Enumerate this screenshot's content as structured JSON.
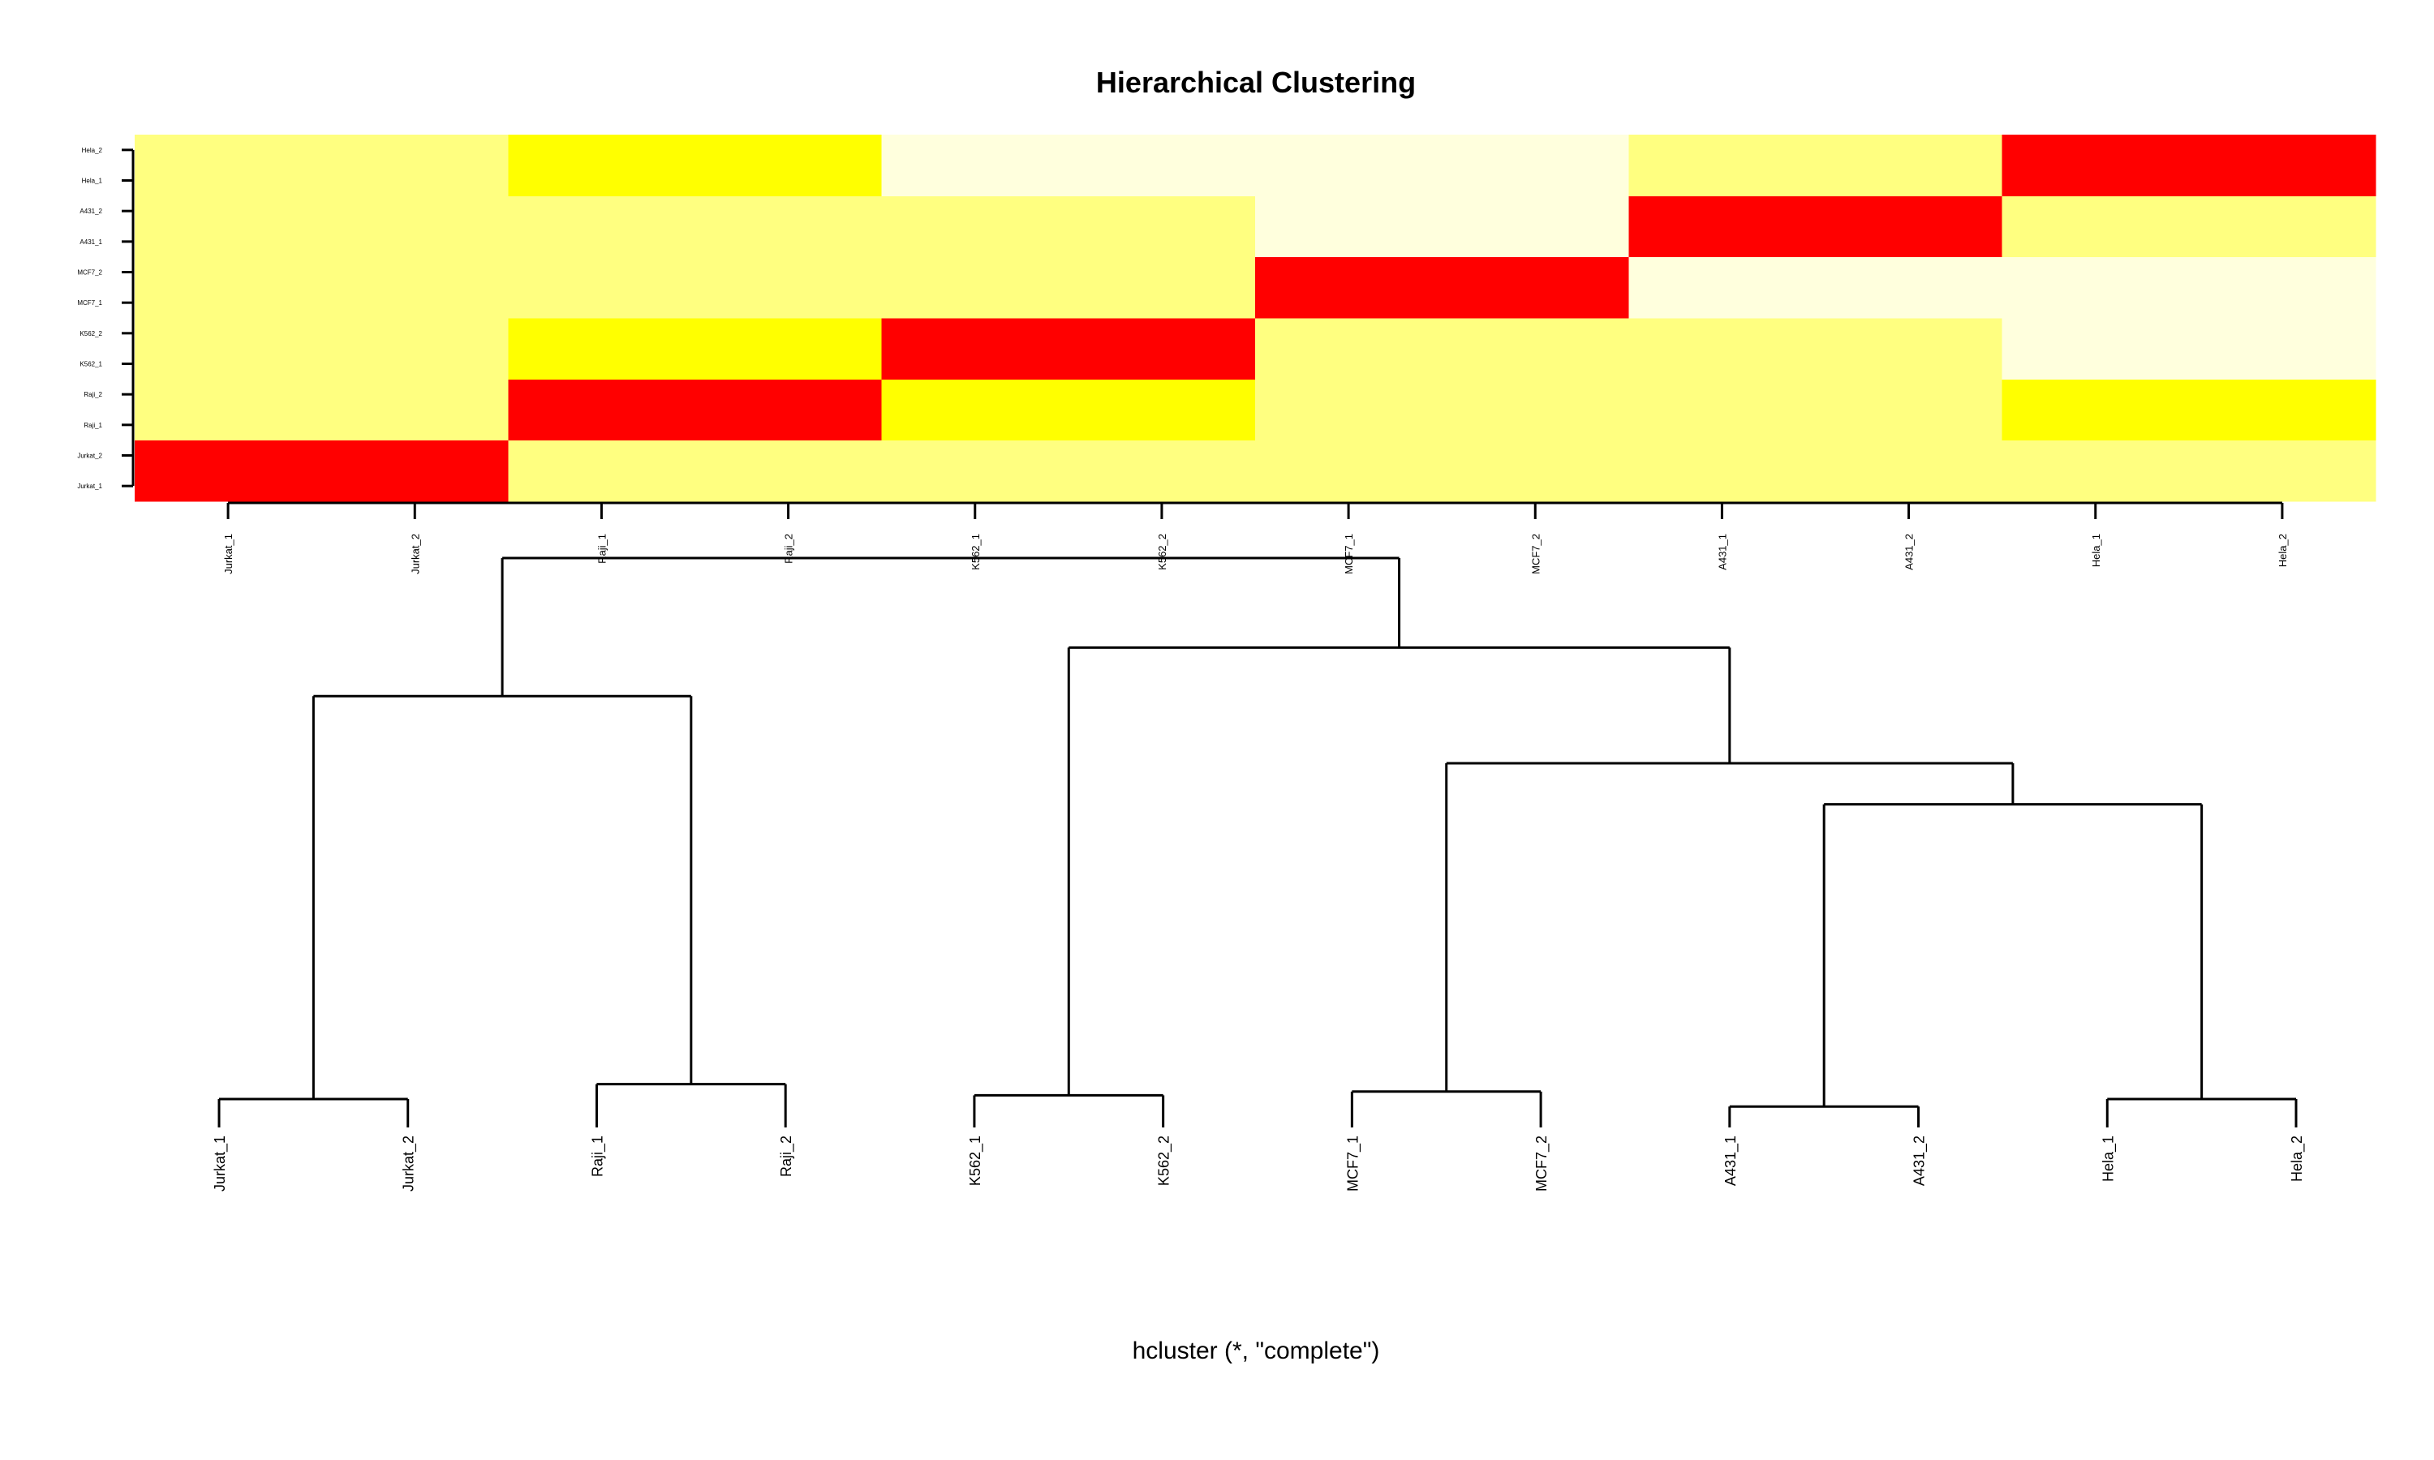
{
  "chart_data": [
    {
      "type": "heatmap",
      "title": "Hierarchical Clustering",
      "xlabel": "",
      "ylabel": "",
      "x": [
        "Jurkat_1",
        "Jurkat_2",
        "Raji_1",
        "Raji_2",
        "K562_1",
        "K562_2",
        "MCF7_1",
        "MCF7_2",
        "A431_1",
        "A431_2",
        "Hela_1",
        "Hela_2"
      ],
      "y": [
        "Jurkat_1",
        "Jurkat_2",
        "Raji_1",
        "Raji_2",
        "K562_1",
        "K562_2",
        "MCF7_1",
        "MCF7_2",
        "A431_1",
        "A431_2",
        "Hela_1",
        "Hela_2"
      ],
      "y_display": [
        "Jurkat_1",
        "Jurkat_2",
        "Raji_1",
        "Raji_2",
        "K562_1",
        "K562_2",
        "MCF7_1",
        "MCF7_2",
        "A431_1",
        "A431_2",
        "Hela_1",
        "Hela_2"
      ],
      "values": [
        [
          1.0,
          1.0,
          0.14,
          0.14,
          0.25,
          0.25,
          0.15,
          0.15,
          0.15,
          0.15,
          0.15,
          0.15
        ],
        [
          1.0,
          1.0,
          0.14,
          0.14,
          0.25,
          0.25,
          0.15,
          0.15,
          0.15,
          0.15,
          0.15,
          0.15
        ],
        [
          0.16,
          0.16,
          1.0,
          0.94,
          0.49,
          0.49,
          0.23,
          0.23,
          0.23,
          0.23,
          0.42,
          0.42
        ],
        [
          0.16,
          0.16,
          0.94,
          1.0,
          0.49,
          0.49,
          0.23,
          0.23,
          0.23,
          0.23,
          0.42,
          0.42
        ],
        [
          0.22,
          0.22,
          0.49,
          0.49,
          1.0,
          0.94,
          0.23,
          0.23,
          0.14,
          0.14,
          0.12,
          0.12
        ],
        [
          0.22,
          0.22,
          0.49,
          0.49,
          0.94,
          1.0,
          0.23,
          0.23,
          0.14,
          0.14,
          0.12,
          0.12
        ],
        [
          0.19,
          0.19,
          0.23,
          0.23,
          0.23,
          0.23,
          1.0,
          0.94,
          0.12,
          0.12,
          0.12,
          0.12
        ],
        [
          0.19,
          0.19,
          0.23,
          0.23,
          0.23,
          0.23,
          0.94,
          1.0,
          0.12,
          0.12,
          0.12,
          0.12
        ],
        [
          0.18,
          0.18,
          0.23,
          0.23,
          0.14,
          0.14,
          0.12,
          0.12,
          1.0,
          1.0,
          0.25,
          0.25
        ],
        [
          0.18,
          0.18,
          0.23,
          0.23,
          0.14,
          0.14,
          0.12,
          0.12,
          1.0,
          1.0,
          0.25,
          0.25
        ],
        [
          0.14,
          0.14,
          0.41,
          0.41,
          0.12,
          0.12,
          0.12,
          0.12,
          0.25,
          0.25,
          1.0,
          1.0
        ],
        [
          0.14,
          0.14,
          0.41,
          0.41,
          0.12,
          0.12,
          0.12,
          0.12,
          0.25,
          0.25,
          1.0,
          1.0
        ]
      ],
      "colors": [
        "#ff0000",
        "#ff2000",
        "#ffb600",
        "#ffdb00",
        "#ffff00",
        "#ffff2a",
        "#ffff80",
        "#ffffdd"
      ]
    },
    {
      "type": "dendrogram",
      "title": "",
      "subtitle": "hcluster (*, \"complete\")",
      "leaves": [
        "Jurkat_1",
        "Jurkat_2",
        "Raji_1",
        "Raji_2",
        "K562_1",
        "K562_2",
        "MCF7_1",
        "MCF7_2",
        "A431_1",
        "A431_2",
        "Hela_1",
        "Hela_2"
      ],
      "merges": [
        {
          "left": "Jurkat_1",
          "right": "Jurkat_2",
          "height": 0.0
        },
        {
          "left": "Raji_1",
          "right": "Raji_2",
          "height": 0.04
        },
        {
          "left": "K562_1",
          "right": "K562_2",
          "height": 0.01
        },
        {
          "left": "MCF7_1",
          "right": "MCF7_2",
          "height": 0.02
        },
        {
          "left": "A431_1",
          "right": "A431_2",
          "height": -0.02
        },
        {
          "left": "Hela_1",
          "right": "Hela_2",
          "height": 0.0
        },
        {
          "left": "A431_1+A431_2",
          "right": "Hela_1+Hela_2",
          "height": 0.79
        },
        {
          "left": "MCF7_1+MCF7_2",
          "right": "A431_1+A431_2+Hela_1+Hela_2",
          "height": 0.9
        },
        {
          "left": "K562_1+K562_2",
          "right": "MCF7_1+MCF7_2+A431_1+A431_2+Hela_1+Hela_2",
          "height": 1.21
        },
        {
          "left": "Jurkat_1+Jurkat_2",
          "right": "Raji_1+Raji_2",
          "height": 1.08
        },
        {
          "left": "Jurkat_1+Jurkat_2+Raji_1+Raji_2",
          "right": "K562_1+K562_2+MCF7_1+MCF7_2+A431_1+A431_2+Hela_1+Hela_2",
          "height": 1.45
        }
      ]
    }
  ]
}
